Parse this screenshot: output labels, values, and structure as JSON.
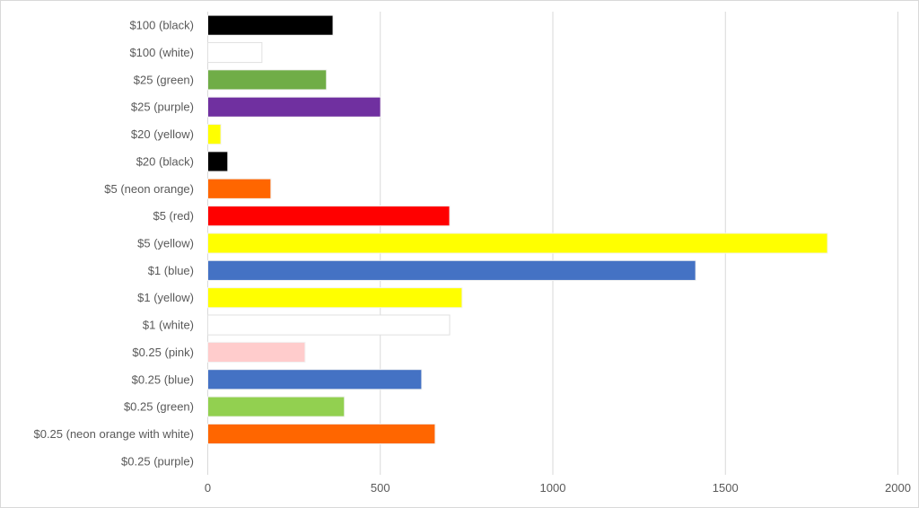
{
  "chart_data": {
    "type": "bar",
    "orientation": "horizontal",
    "title": "",
    "xlabel": "",
    "ylabel": "",
    "xlim": [
      0,
      2000
    ],
    "x_ticks": [
      0,
      500,
      1000,
      1500,
      2000
    ],
    "grid": "vertical gridlines",
    "legend": "none",
    "categories": [
      "$100 (black)",
      "$100 (white)",
      "$25 (green)",
      "$25 (purple)",
      "$20 (yellow)",
      "$20 (black)",
      "$5 (neon orange)",
      "$5 (red)",
      "$5 (yellow)",
      "$1 (blue)",
      "$1 (yellow)",
      "$1 (white)",
      "$0.25 (pink)",
      "$0.25 (blue)",
      "$0.25 (green)",
      "$0.25 (neon orange with white)",
      "$0.25 (purple)"
    ],
    "values": [
      363,
      157,
      344,
      501,
      38,
      58,
      183,
      701,
      1796,
      1414,
      737,
      701,
      282,
      620,
      396,
      659,
      0
    ],
    "colors": [
      "#000000",
      "#ffffff",
      "#70ad47",
      "#7030a0",
      "#ffff00",
      "#000000",
      "#ff6600",
      "#ff0000",
      "#ffff00",
      "#4472c4",
      "#ffff00",
      "#ffffff",
      "#ffcccc",
      "#4472c4",
      "#92d050",
      "#ff6600",
      "#7030a0"
    ]
  }
}
